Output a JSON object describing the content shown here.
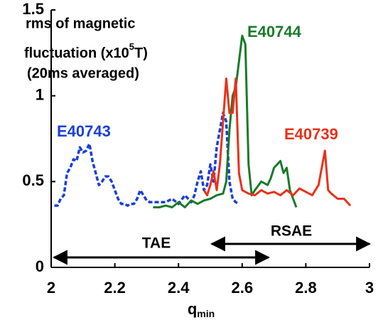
{
  "chart_data": {
    "type": "line",
    "title_lines": [
      "rms of magnetic",
      "fluctuation (x10",
      "(20ms averaged)"
    ],
    "title_sup": "5",
    "title_sup_after": "T)",
    "x_label": "q",
    "x_label_sub": "min",
    "xlim": [
      2,
      3
    ],
    "xticks": [
      2,
      2.2,
      2.4,
      2.6,
      2.8,
      3
    ],
    "ylim": [
      0,
      1.5
    ],
    "yticks": [
      0,
      0.5,
      1,
      1.5
    ],
    "grid": false,
    "annotations": [
      "TAE",
      "RSAE"
    ],
    "series": [
      {
        "name": "E40743",
        "color": "#1a3fd6",
        "style": "dashed",
        "x": [
          2.01,
          2.02,
          2.03,
          2.04,
          2.05,
          2.06,
          2.07,
          2.08,
          2.09,
          2.1,
          2.11,
          2.12,
          2.13,
          2.14,
          2.15,
          2.16,
          2.17,
          2.18,
          2.19,
          2.2,
          2.21,
          2.22,
          2.23,
          2.24,
          2.25,
          2.26,
          2.27,
          2.28,
          2.29,
          2.3,
          2.31,
          2.32,
          2.34,
          2.36,
          2.38,
          2.4,
          2.42,
          2.44,
          2.45,
          2.46,
          2.47,
          2.48,
          2.49,
          2.5,
          2.51,
          2.52,
          2.53,
          2.54,
          2.55,
          2.56,
          2.57,
          2.58,
          2.59
        ],
        "values": [
          0.36,
          0.36,
          0.4,
          0.42,
          0.55,
          0.58,
          0.63,
          0.62,
          0.7,
          0.67,
          0.68,
          0.72,
          0.62,
          0.55,
          0.48,
          0.5,
          0.53,
          0.53,
          0.5,
          0.45,
          0.4,
          0.37,
          0.37,
          0.36,
          0.37,
          0.37,
          0.4,
          0.45,
          0.42,
          0.39,
          0.38,
          0.38,
          0.38,
          0.38,
          0.4,
          0.37,
          0.42,
          0.38,
          0.42,
          0.5,
          0.56,
          0.45,
          0.48,
          0.6,
          0.5,
          0.7,
          0.8,
          0.9,
          0.85,
          0.5,
          0.4,
          0.38,
          0.37
        ]
      },
      {
        "name": "E40744",
        "color": "#1a7a2a",
        "style": "solid",
        "x": [
          2.32,
          2.34,
          2.36,
          2.38,
          2.4,
          2.42,
          2.44,
          2.46,
          2.48,
          2.5,
          2.52,
          2.54,
          2.55,
          2.56,
          2.57,
          2.58,
          2.59,
          2.6,
          2.61,
          2.62,
          2.63,
          2.64,
          2.66,
          2.68,
          2.69,
          2.7,
          2.71,
          2.72,
          2.73,
          2.74,
          2.75,
          2.76,
          2.77
        ],
        "values": [
          0.35,
          0.35,
          0.36,
          0.35,
          0.38,
          0.35,
          0.39,
          0.37,
          0.39,
          0.4,
          0.42,
          0.43,
          0.5,
          0.8,
          1.0,
          1.05,
          1.2,
          1.35,
          1.3,
          0.6,
          0.42,
          0.45,
          0.5,
          0.48,
          0.52,
          0.58,
          0.6,
          0.62,
          0.55,
          0.58,
          0.45,
          0.4,
          0.35
        ]
      },
      {
        "name": "E40739",
        "color": "#e8321a",
        "style": "solid",
        "x": [
          2.48,
          2.49,
          2.5,
          2.51,
          2.52,
          2.53,
          2.54,
          2.55,
          2.56,
          2.57,
          2.58,
          2.59,
          2.6,
          2.62,
          2.64,
          2.66,
          2.68,
          2.7,
          2.72,
          2.74,
          2.76,
          2.78,
          2.8,
          2.82,
          2.84,
          2.85,
          2.86,
          2.87,
          2.88,
          2.9,
          2.92,
          2.93,
          2.94
        ],
        "values": [
          0.45,
          0.42,
          0.48,
          0.56,
          0.45,
          0.6,
          0.85,
          1.1,
          0.9,
          0.9,
          1.1,
          0.55,
          0.45,
          0.43,
          0.42,
          0.45,
          0.43,
          0.44,
          0.42,
          0.45,
          0.42,
          0.46,
          0.44,
          0.42,
          0.48,
          0.58,
          0.68,
          0.45,
          0.43,
          0.4,
          0.4,
          0.38,
          0.36
        ]
      }
    ]
  }
}
